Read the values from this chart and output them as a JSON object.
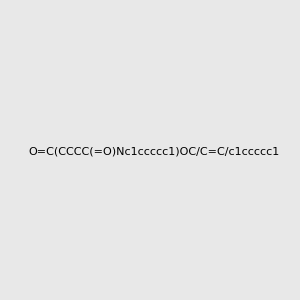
{
  "smiles": "O=C(CCCC(=O)Nc1ccccc1)OC/C=C/c1ccccc1",
  "image_size": 300,
  "background_color": "#e8e8e8"
}
